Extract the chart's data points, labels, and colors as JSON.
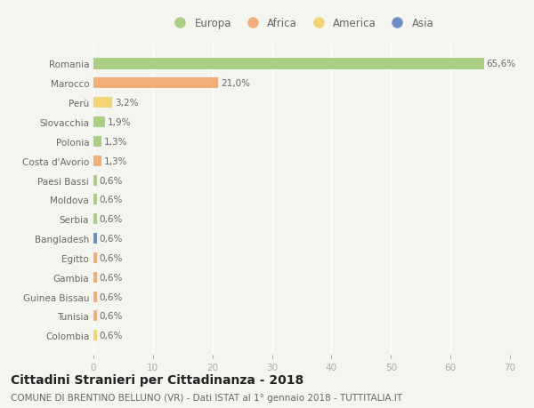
{
  "countries": [
    "Romania",
    "Marocco",
    "Perù",
    "Slovacchia",
    "Polonia",
    "Costa d'Avorio",
    "Paesi Bassi",
    "Moldova",
    "Serbia",
    "Bangladesh",
    "Egitto",
    "Gambia",
    "Guinea Bissau",
    "Tunisia",
    "Colombia"
  ],
  "values": [
    65.6,
    21.0,
    3.2,
    1.9,
    1.3,
    1.3,
    0.6,
    0.6,
    0.6,
    0.6,
    0.6,
    0.6,
    0.6,
    0.6,
    0.6
  ],
  "labels": [
    "65,6%",
    "21,0%",
    "3,2%",
    "1,9%",
    "1,3%",
    "1,3%",
    "0,6%",
    "0,6%",
    "0,6%",
    "0,6%",
    "0,6%",
    "0,6%",
    "0,6%",
    "0,6%",
    "0,6%"
  ],
  "continent": [
    "Europa",
    "Africa",
    "America",
    "Europa",
    "Europa",
    "Africa",
    "Europa",
    "Europa",
    "Europa",
    "Asia",
    "Africa",
    "Africa",
    "Africa",
    "Africa",
    "America"
  ],
  "colors": {
    "Europa": "#aacf82",
    "Africa": "#f2ae78",
    "America": "#f2d472",
    "Asia": "#6b8ec8"
  },
  "legend_order": [
    "Europa",
    "Africa",
    "America",
    "Asia"
  ],
  "xlim": [
    0,
    70
  ],
  "xticks": [
    0,
    10,
    20,
    30,
    40,
    50,
    60,
    70
  ],
  "title": "Cittadini Stranieri per Cittadinanza - 2018",
  "subtitle": "COMUNE DI BRENTINO BELLUNO (VR) - Dati ISTAT al 1° gennaio 2018 - TUTTITALIA.IT",
  "background_color": "#f5f5f0",
  "grid_color": "#ffffff",
  "bar_height": 0.55,
  "label_fontsize": 7.5,
  "tick_fontsize": 7.5,
  "title_fontsize": 10,
  "subtitle_fontsize": 7.5
}
